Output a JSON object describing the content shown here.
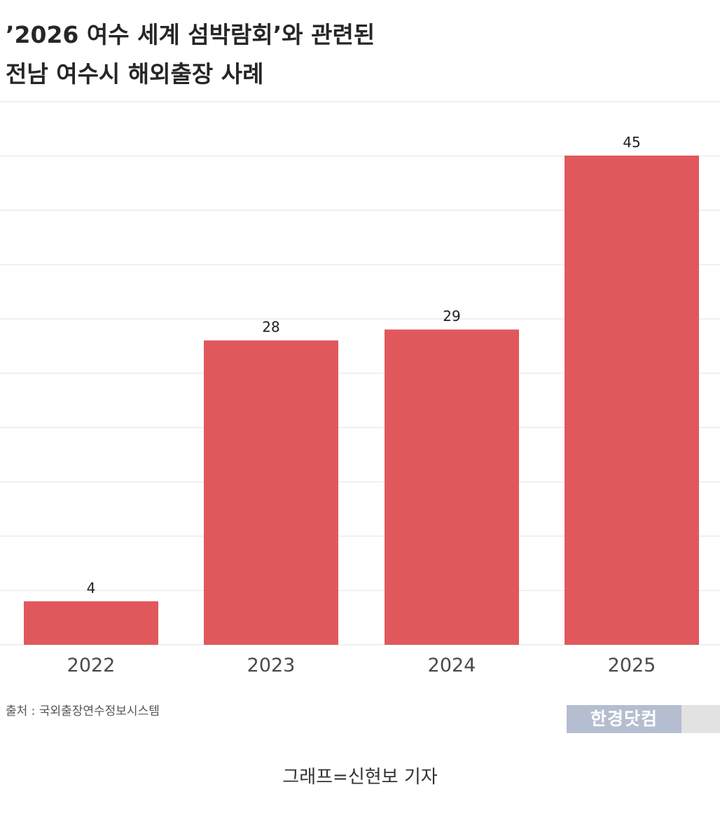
{
  "title_lines": [
    "’2026 여수 세계 섬박람회’와 관련된",
    "전남 여수시 해외출장 사례"
  ],
  "source": "출처 : 국외출장연수정보시스템",
  "brand": "한경닷컴",
  "caption": "그래프=신현보 기자",
  "colors": {
    "bar": "#e0585c",
    "grid": "#ececec",
    "axis_label": "#4a4a4a",
    "value_label": "#1f1f1f"
  },
  "chart_data": {
    "type": "bar",
    "categories": [
      "2022",
      "2023",
      "2024",
      "2025"
    ],
    "values": [
      4,
      28,
      29,
      45
    ],
    "ylim": [
      0,
      45
    ],
    "grid": true,
    "data_labels": true
  }
}
